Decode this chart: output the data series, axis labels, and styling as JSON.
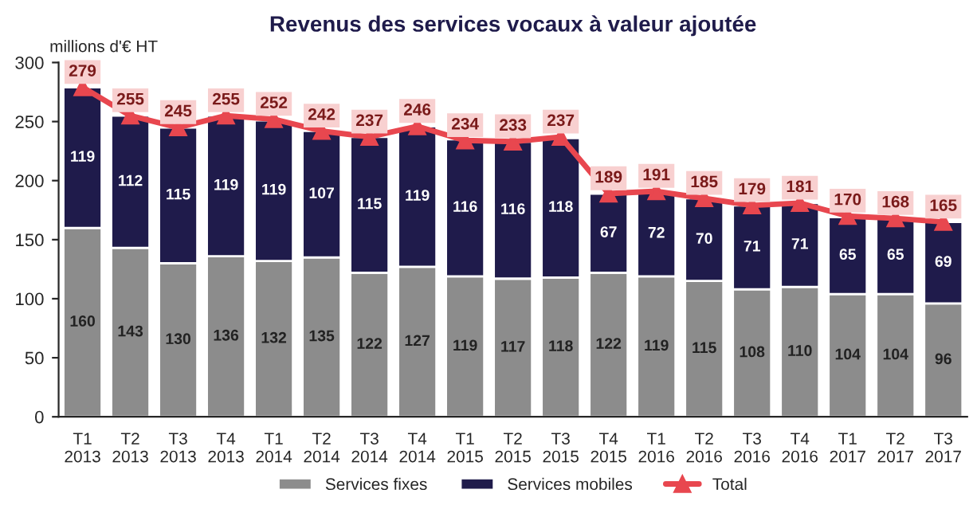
{
  "chart_data": {
    "type": "bar",
    "title": "Revenus des services vocaux à valeur ajoutée",
    "ylabel": "millions d'€ HT",
    "categories": [
      "T1\n2013",
      "T2\n2013",
      "T3\n2013",
      "T4\n2013",
      "T1\n2014",
      "T2\n2014",
      "T3\n2014",
      "T4\n2014",
      "T1\n2015",
      "T2\n2015",
      "T3\n2015",
      "T4\n2015",
      "T1\n2016",
      "T2\n2016",
      "T3\n2016",
      "T4\n2016",
      "T1\n2017",
      "T2\n2017",
      "T3\n2017"
    ],
    "series": [
      {
        "name": "Services fixes",
        "color": "#8c8c8c",
        "values": [
          160,
          143,
          130,
          136,
          132,
          135,
          122,
          127,
          119,
          117,
          118,
          122,
          119,
          115,
          108,
          110,
          104,
          104,
          96
        ]
      },
      {
        "name": "Services mobiles",
        "color": "#1f1b4b",
        "values": [
          119,
          112,
          115,
          119,
          119,
          107,
          115,
          119,
          116,
          116,
          118,
          67,
          72,
          70,
          71,
          71,
          65,
          65,
          69
        ]
      },
      {
        "name": "Total",
        "type": "line",
        "color": "#e8474f",
        "marker": "triangle",
        "values": [
          279,
          255,
          245,
          255,
          252,
          242,
          237,
          246,
          234,
          233,
          237,
          189,
          191,
          185,
          179,
          181,
          170,
          168,
          165
        ]
      }
    ],
    "stacked": true,
    "data_labels": true,
    "ylim": [
      0,
      300
    ],
    "yticks": [
      0,
      50,
      100,
      150,
      200,
      250,
      300
    ],
    "grid": false,
    "legend": "bottom"
  }
}
